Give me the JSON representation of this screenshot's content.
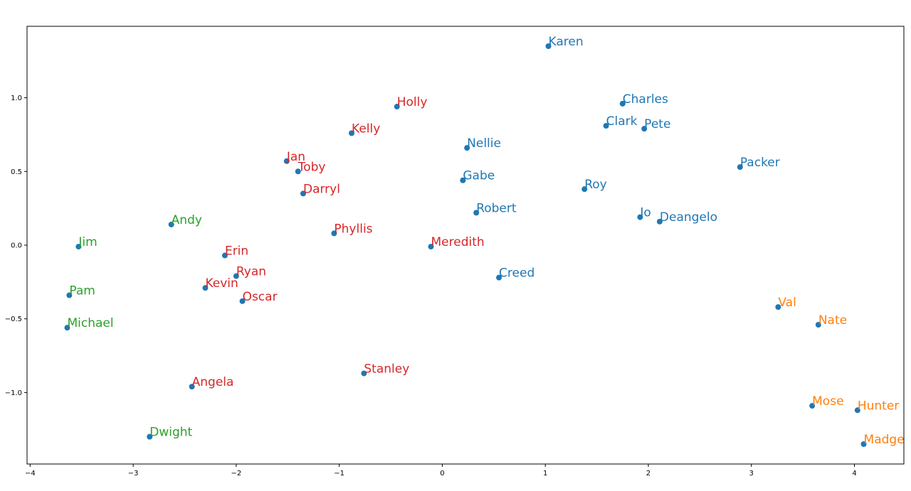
{
  "chart_data": {
    "type": "scatter",
    "title": "",
    "xlabel": "",
    "ylabel": "",
    "xlim": [
      -4.03,
      4.48
    ],
    "ylim": [
      -1.485,
      1.485
    ],
    "xticks": [
      -4,
      -3,
      -2,
      -1,
      0,
      1,
      2,
      3,
      4
    ],
    "xtick_labels": [
      "−4",
      "−3",
      "−2",
      "−1",
      "0",
      "1",
      "2",
      "3",
      "4"
    ],
    "yticks": [
      -1.0,
      -0.5,
      0.0,
      0.5,
      1.0
    ],
    "ytick_labels": [
      "−1.0",
      "−0.5",
      "0.0",
      "0.5",
      "1.0"
    ],
    "grid": false,
    "marker_color": "#1f77b4",
    "group_colors": {
      "green": "#2ca02c",
      "red": "#d62728",
      "blue": "#1f77b4",
      "orange": "#ff7f0e"
    },
    "points": [
      {
        "label": "Karen",
        "x": 1.03,
        "y": 1.35,
        "group": "blue"
      },
      {
        "label": "Charles",
        "x": 1.75,
        "y": 0.96,
        "group": "blue"
      },
      {
        "label": "Clark",
        "x": 1.59,
        "y": 0.81,
        "group": "blue"
      },
      {
        "label": "Pete",
        "x": 1.96,
        "y": 0.79,
        "group": "blue"
      },
      {
        "label": "Nellie",
        "x": 0.24,
        "y": 0.66,
        "group": "blue"
      },
      {
        "label": "Gabe",
        "x": 0.2,
        "y": 0.44,
        "group": "blue"
      },
      {
        "label": "Packer",
        "x": 2.89,
        "y": 0.53,
        "group": "blue"
      },
      {
        "label": "Roy",
        "x": 1.38,
        "y": 0.38,
        "group": "blue"
      },
      {
        "label": "Robert",
        "x": 0.33,
        "y": 0.22,
        "group": "blue"
      },
      {
        "label": "Jo",
        "x": 1.92,
        "y": 0.19,
        "group": "blue"
      },
      {
        "label": "Deangelo",
        "x": 2.11,
        "y": 0.16,
        "group": "blue"
      },
      {
        "label": "Creed",
        "x": 0.55,
        "y": -0.22,
        "group": "blue"
      },
      {
        "label": "Holly",
        "x": -0.44,
        "y": 0.94,
        "group": "red"
      },
      {
        "label": "Kelly",
        "x": -0.88,
        "y": 0.76,
        "group": "red"
      },
      {
        "label": "Jan",
        "x": -1.51,
        "y": 0.57,
        "group": "red"
      },
      {
        "label": "Toby",
        "x": -1.4,
        "y": 0.5,
        "group": "red"
      },
      {
        "label": "Darryl",
        "x": -1.35,
        "y": 0.35,
        "group": "red"
      },
      {
        "label": "Phyllis",
        "x": -1.05,
        "y": 0.08,
        "group": "red"
      },
      {
        "label": "Meredith",
        "x": -0.11,
        "y": -0.01,
        "group": "red"
      },
      {
        "label": "Erin",
        "x": -2.11,
        "y": -0.07,
        "group": "red"
      },
      {
        "label": "Ryan",
        "x": -2.0,
        "y": -0.21,
        "group": "red"
      },
      {
        "label": "Kevin",
        "x": -2.3,
        "y": -0.29,
        "group": "red"
      },
      {
        "label": "Oscar",
        "x": -1.94,
        "y": -0.38,
        "group": "red"
      },
      {
        "label": "Stanley",
        "x": -0.76,
        "y": -0.87,
        "group": "red"
      },
      {
        "label": "Angela",
        "x": -2.43,
        "y": -0.96,
        "group": "red"
      },
      {
        "label": "Andy",
        "x": -2.63,
        "y": 0.14,
        "group": "green"
      },
      {
        "label": "Jim",
        "x": -3.53,
        "y": -0.01,
        "group": "green"
      },
      {
        "label": "Pam",
        "x": -3.62,
        "y": -0.34,
        "group": "green"
      },
      {
        "label": "Michael",
        "x": -3.64,
        "y": -0.56,
        "group": "green"
      },
      {
        "label": "Dwight",
        "x": -2.84,
        "y": -1.3,
        "group": "green"
      },
      {
        "label": "Val",
        "x": 3.26,
        "y": -0.42,
        "group": "orange"
      },
      {
        "label": "Nate",
        "x": 3.65,
        "y": -0.54,
        "group": "orange"
      },
      {
        "label": "Mose",
        "x": 3.59,
        "y": -1.09,
        "group": "orange"
      },
      {
        "label": "Hunter",
        "x": 4.03,
        "y": -1.12,
        "group": "orange"
      },
      {
        "label": "Madge",
        "x": 4.09,
        "y": -1.35,
        "group": "orange"
      }
    ]
  }
}
